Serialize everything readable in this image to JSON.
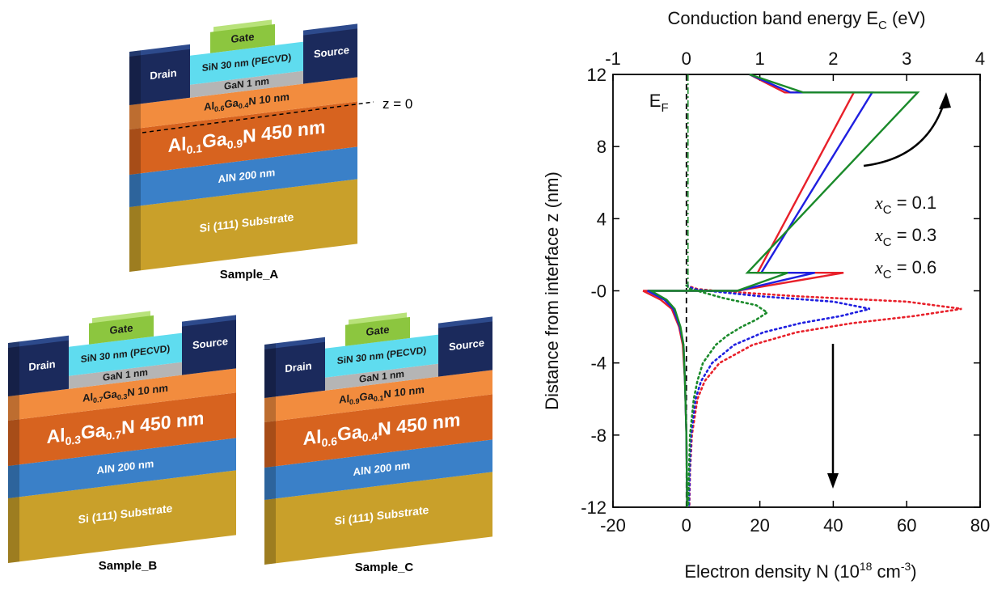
{
  "devices": [
    {
      "name": "Sample_A",
      "gate": "Gate",
      "drain": "Drain",
      "source": "Source",
      "sin": "SiN 30 nm (PECVD)",
      "gan": "GaN 1 nm",
      "barrier": [
        "Al",
        "0.6",
        "Ga",
        "0.4",
        "N 10 nm"
      ],
      "channel": [
        "Al",
        "0.1",
        "Ga",
        "0.9",
        "N 450 nm"
      ],
      "buffer": "AlN 200 nm",
      "substrate": "Si (111) Substrate"
    },
    {
      "name": "Sample_B",
      "gate": "Gate",
      "drain": "Drain",
      "source": "Source",
      "sin": "SiN 30 nm (PECVD)",
      "gan": "GaN 1 nm",
      "barrier": [
        "Al",
        "0.7",
        "Ga",
        "0.3",
        "N 10 nm"
      ],
      "channel": [
        "Al",
        "0.3",
        "Ga",
        "0.7",
        "N 450 nm"
      ],
      "buffer": "AlN 200 nm",
      "substrate": "Si (111) Substrate"
    },
    {
      "name": "Sample_C",
      "gate": "Gate",
      "drain": "Drain",
      "source": "Source",
      "sin": "SiN 30 nm (PECVD)",
      "gan": "GaN 1 nm",
      "barrier": [
        "Al",
        "0.9",
        "Ga",
        "0.1",
        "N 10 nm"
      ],
      "channel": [
        "Al",
        "0.6",
        "Ga",
        "0.4",
        "N 450 nm"
      ],
      "buffer": "AlN 200 nm",
      "substrate": "Si (111) Substrate"
    }
  ],
  "interface_label": "z = 0",
  "chart_data": {
    "type": "line",
    "x_label": [
      "Electron density N (10",
      "18",
      " cm",
      "-3",
      ")"
    ],
    "x2_label": [
      "Conduction band energy E",
      "C",
      " (eV)"
    ],
    "y_label": "Distance from interface z (nm)",
    "xlim": [
      -20,
      80
    ],
    "xticks": [
      -20,
      0,
      20,
      40,
      60,
      80
    ],
    "x2lim": [
      -1,
      4
    ],
    "x2ticks": [
      -1,
      0,
      1,
      2,
      3,
      4
    ],
    "ylim": [
      -12,
      12
    ],
    "yticks": [
      -12,
      -8,
      -4,
      {
        "value": 0,
        "label": "-0"
      },
      4,
      8,
      12
    ],
    "annotations": [
      {
        "text": [
          "E",
          "F"
        ],
        "x": 0
      }
    ],
    "series": [
      {
        "name": [
          "x",
          "C",
          " = 0.1"
        ],
        "color": "#e8202a",
        "energy": {
          "x": [
            0.86,
            1.34,
            2.28,
            0.97,
            2.14,
            0.69,
            -0.59,
            -0.35,
            -0.2,
            -0.1,
            -0.05,
            -0.02,
            0,
            0.01
          ],
          "z": [
            12,
            11,
            11,
            1,
            1,
            0,
            0,
            -0.5,
            -1,
            -2,
            -3,
            -5,
            -8,
            -12
          ]
        },
        "density": {
          "x": [
            0,
            3,
            8,
            30,
            60,
            75,
            62,
            45,
            30,
            18,
            9,
            5,
            3,
            1.5,
            1,
            0.8
          ],
          "z": [
            0.3,
            0.1,
            0,
            -0.3,
            -0.6,
            -1,
            -1.4,
            -1.8,
            -2.3,
            -3,
            -4,
            -5,
            -6,
            -8,
            -10,
            -12
          ]
        }
      },
      {
        "name": [
          "x",
          "C",
          " = 0.3"
        ],
        "color": "#1f1fe0",
        "energy": {
          "x": [
            0.86,
            1.42,
            2.53,
            1.02,
            1.75,
            0.69,
            -0.53,
            -0.3,
            -0.18,
            -0.09,
            -0.04,
            -0.02,
            0,
            0.01
          ],
          "z": [
            12,
            11,
            11,
            1,
            1,
            0,
            0,
            -0.5,
            -1,
            -2,
            -3,
            -5,
            -8,
            -12
          ]
        },
        "density": {
          "x": [
            0,
            2,
            6,
            20,
            40,
            50,
            42,
            31,
            21,
            13,
            7,
            4,
            2.5,
            1.3,
            0.9,
            0.7
          ],
          "z": [
            0.3,
            0.1,
            0,
            -0.3,
            -0.6,
            -1,
            -1.4,
            -1.8,
            -2.3,
            -3,
            -4,
            -5,
            -6,
            -8,
            -10,
            -12
          ]
        }
      },
      {
        "name": [
          "x",
          "C",
          " = 0.6"
        ],
        "color": "#1a8a2a",
        "energy": {
          "x": [
            0.86,
            1.59,
            3.15,
            0.83,
            1.38,
            0.69,
            -0.48,
            -0.27,
            -0.16,
            -0.08,
            -0.04,
            -0.02,
            0,
            0.01
          ],
          "z": [
            12,
            11,
            11,
            1,
            1,
            0,
            0,
            -0.5,
            -1,
            -2,
            -3,
            -5,
            -8,
            -12
          ]
        },
        "density": {
          "x": [
            0,
            1,
            3,
            10,
            19,
            22,
            19,
            15,
            11,
            8,
            4.5,
            3,
            2,
            1,
            0.7,
            0.5
          ],
          "z": [
            0.3,
            0.1,
            0,
            -0.4,
            -0.8,
            -1.2,
            -1.6,
            -2,
            -2.5,
            -3,
            -4,
            -5,
            -6,
            -8,
            -10,
            -12
          ]
        }
      }
    ]
  }
}
